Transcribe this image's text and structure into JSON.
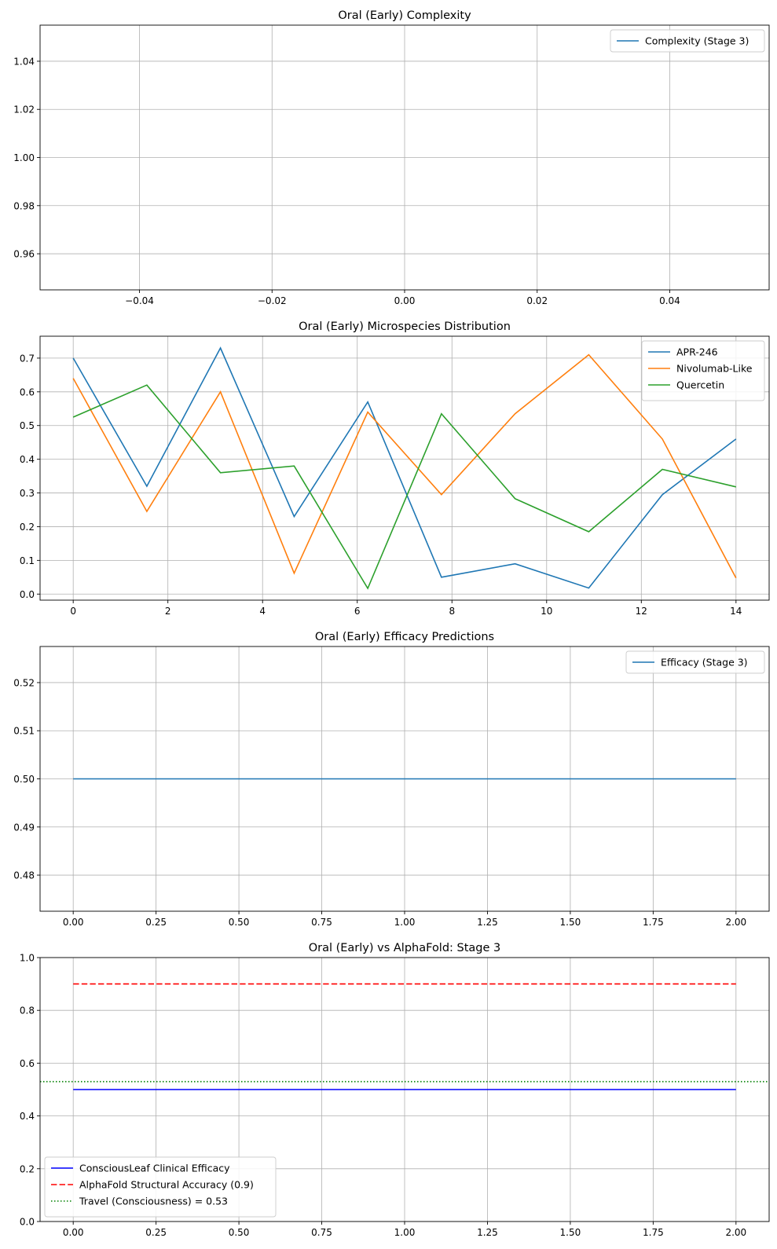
{
  "chart_data": [
    {
      "type": "line",
      "title": "Oral (Early) Complexity",
      "xlabel": "",
      "ylabel": "",
      "xlim": [
        -0.055,
        0.055
      ],
      "ylim": [
        0.945,
        1.055
      ],
      "xticks": [
        -0.04,
        -0.02,
        0.0,
        0.02,
        0.04
      ],
      "xtick_labels": [
        "−0.04",
        "−0.02",
        "0.00",
        "0.02",
        "0.04"
      ],
      "yticks": [
        0.96,
        0.98,
        1.0,
        1.02,
        1.04
      ],
      "ytick_labels": [
        "0.96",
        "0.98",
        "1.00",
        "1.02",
        "1.04"
      ],
      "grid": true,
      "legend_position": "upper right",
      "series": [
        {
          "name": "Complexity (Stage 3)",
          "color": "#1f77b4",
          "style": "solid",
          "x": [],
          "y": []
        }
      ]
    },
    {
      "type": "line",
      "title": "Oral (Early) Microspecies Distribution",
      "xlabel": "",
      "ylabel": "",
      "xlim": [
        -0.7,
        14.7
      ],
      "ylim": [
        -0.018,
        0.765
      ],
      "xticks": [
        0,
        2,
        4,
        6,
        8,
        10,
        12,
        14
      ],
      "xtick_labels": [
        "0",
        "2",
        "4",
        "6",
        "8",
        "10",
        "12",
        "14"
      ],
      "yticks": [
        0.0,
        0.1,
        0.2,
        0.3,
        0.4,
        0.5,
        0.6,
        0.7
      ],
      "ytick_labels": [
        "0.0",
        "0.1",
        "0.2",
        "0.3",
        "0.4",
        "0.5",
        "0.6",
        "0.7"
      ],
      "grid": true,
      "legend_position": "upper right",
      "series": [
        {
          "name": "APR-246",
          "color": "#1f77b4",
          "style": "solid",
          "x": [
            0,
            1.556,
            3.111,
            4.667,
            6.222,
            7.778,
            9.333,
            10.889,
            12.444,
            14
          ],
          "y": [
            0.7,
            0.32,
            0.73,
            0.23,
            0.57,
            0.05,
            0.09,
            0.018,
            0.295,
            0.46
          ]
        },
        {
          "name": "Nivolumab-Like",
          "color": "#ff7f0e",
          "style": "solid",
          "x": [
            0,
            1.556,
            3.111,
            4.667,
            6.222,
            7.778,
            9.333,
            10.889,
            12.444,
            14
          ],
          "y": [
            0.64,
            0.245,
            0.6,
            0.062,
            0.54,
            0.295,
            0.535,
            0.71,
            0.46,
            0.048
          ]
        },
        {
          "name": "Quercetin",
          "color": "#2ca02c",
          "style": "solid",
          "x": [
            0,
            1.556,
            3.111,
            4.667,
            6.222,
            7.778,
            9.333,
            10.889,
            12.444,
            14
          ],
          "y": [
            0.525,
            0.62,
            0.36,
            0.38,
            0.017,
            0.535,
            0.283,
            0.185,
            0.37,
            0.318
          ]
        }
      ]
    },
    {
      "type": "line",
      "title": "Oral (Early) Efficacy Predictions",
      "xlabel": "",
      "ylabel": "",
      "xlim": [
        -0.1,
        2.1
      ],
      "ylim": [
        0.4725,
        0.5275
      ],
      "xticks": [
        0.0,
        0.25,
        0.5,
        0.75,
        1.0,
        1.25,
        1.5,
        1.75,
        2.0
      ],
      "xtick_labels": [
        "0.00",
        "0.25",
        "0.50",
        "0.75",
        "1.00",
        "1.25",
        "1.50",
        "1.75",
        "2.00"
      ],
      "yticks": [
        0.48,
        0.49,
        0.5,
        0.51,
        0.52
      ],
      "ytick_labels": [
        "0.48",
        "0.49",
        "0.50",
        "0.51",
        "0.52"
      ],
      "grid": true,
      "legend_position": "upper right",
      "series": [
        {
          "name": "Efficacy (Stage 3)",
          "color": "#1f77b4",
          "style": "solid",
          "x": [
            0,
            1,
            2
          ],
          "y": [
            0.5,
            0.5,
            0.5
          ]
        }
      ]
    },
    {
      "type": "line",
      "title": "Oral (Early) vs AlphaFold: Stage 3",
      "xlabel": "",
      "ylabel": "",
      "xlim": [
        -0.1,
        2.1
      ],
      "ylim": [
        0.0,
        1.0
      ],
      "xticks": [
        0.0,
        0.25,
        0.5,
        0.75,
        1.0,
        1.25,
        1.5,
        1.75,
        2.0
      ],
      "xtick_labels": [
        "0.00",
        "0.25",
        "0.50",
        "0.75",
        "1.00",
        "1.25",
        "1.50",
        "1.75",
        "2.00"
      ],
      "yticks": [
        0.0,
        0.2,
        0.4,
        0.6,
        0.8,
        1.0
      ],
      "ytick_labels": [
        "0.0",
        "0.2",
        "0.4",
        "0.6",
        "0.8",
        "1.0"
      ],
      "grid": true,
      "legend_position": "lower left",
      "series": [
        {
          "name": "ConsciousLeaf Clinical Efficacy",
          "color": "#0000ff",
          "style": "solid",
          "x": [
            0,
            1,
            2
          ],
          "y": [
            0.5,
            0.5,
            0.5
          ]
        },
        {
          "name": "AlphaFold Structural Accuracy (0.9)",
          "color": "#ff0000",
          "style": "dashed",
          "x": [
            0,
            1,
            2
          ],
          "y": [
            0.9,
            0.9,
            0.9
          ]
        },
        {
          "name": "Travel (Consciousness) = 0.53",
          "color": "#008000",
          "style": "dotted",
          "hline": true,
          "y": [
            0.53
          ]
        }
      ]
    }
  ]
}
